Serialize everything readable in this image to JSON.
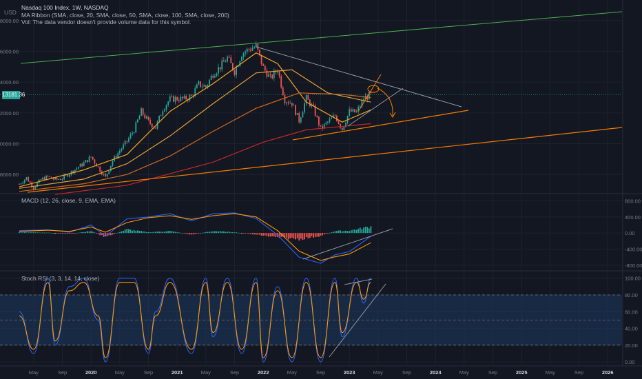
{
  "header": {
    "title": "Nasdaq 100 Index, 1W, NASDAQ",
    "ma_ribbon": "MA Ribbon (SMA, close, 20, SMA, close, 50, SMA, close, 100, SMA, close, 200)",
    "vol_note": "Vol: The data vendor doesn't provide volume data for this symbol.",
    "currency": "USD",
    "last_price": "13181.36"
  },
  "macd": {
    "label": "MACD (12, 26, close, 9, EMA, EMA)"
  },
  "stoch": {
    "label": "Stoch RSI (3, 3, 14, 14, close)"
  },
  "colors": {
    "bull": "#26a69a",
    "bear": "#ef5350",
    "ma20": "#f5a623",
    "ma50": "#e8a035",
    "ma100": "#d2691e",
    "ma200": "#c62828",
    "macd_line": "#2962ff",
    "signal_line": "#ff9800",
    "trend_green": "#4caf50",
    "trend_orange": "#f57c00",
    "stoch_band": "#1e3a5f"
  },
  "chart_data": [
    {
      "type": "line",
      "name": "price",
      "title": "Nasdaq 100 Index, 1W, NASDAQ",
      "ylabel": "USD",
      "ylim": [
        6800,
        19200
      ],
      "y_ticks": [
        8000,
        10000,
        12000,
        14000,
        16000,
        18000
      ],
      "y_tick_labels": [
        "8000.00",
        "10000.00",
        "12000.00",
        "14000.00",
        "16000.00",
        "18000.00"
      ],
      "x_ticks": [
        "May",
        "Sep",
        "2020",
        "May",
        "Sep",
        "2021",
        "May",
        "Sep",
        "2022",
        "May",
        "Sep",
        "2023",
        "May",
        "Sep",
        "2024",
        "May",
        "Sep",
        "2025",
        "May",
        "Sep",
        "2026"
      ],
      "x_bold": [
        "2020",
        "2021",
        "2022",
        "2023",
        "2024",
        "2025",
        "2026"
      ],
      "x_start": "2019-03",
      "x_end": "2026-02",
      "last_price": 13181.36,
      "close_monthly": [
        [
          "2019-03",
          7380
        ],
        [
          "2019-04",
          7780
        ],
        [
          "2019-05",
          7130
        ],
        [
          "2019-06",
          7670
        ],
        [
          "2019-07",
          7850
        ],
        [
          "2019-08",
          7660
        ],
        [
          "2019-09",
          7750
        ],
        [
          "2019-10",
          8080
        ],
        [
          "2019-11",
          8410
        ],
        [
          "2019-12",
          8730
        ],
        [
          "2020-01",
          9150
        ],
        [
          "2020-02",
          8460
        ],
        [
          "2020-03",
          7810
        ],
        [
          "2020-04",
          8890
        ],
        [
          "2020-05",
          9550
        ],
        [
          "2020-06",
          10150
        ],
        [
          "2020-07",
          10900
        ],
        [
          "2020-08",
          12100
        ],
        [
          "2020-09",
          11420
        ],
        [
          "2020-10",
          11050
        ],
        [
          "2020-11",
          12260
        ],
        [
          "2020-12",
          12890
        ],
        [
          "2021-01",
          12930
        ],
        [
          "2021-02",
          12900
        ],
        [
          "2021-03",
          13090
        ],
        [
          "2021-04",
          13860
        ],
        [
          "2021-05",
          13690
        ],
        [
          "2021-06",
          14550
        ],
        [
          "2021-07",
          15000
        ],
        [
          "2021-08",
          15580
        ],
        [
          "2021-09",
          14690
        ],
        [
          "2021-10",
          15850
        ],
        [
          "2021-11",
          16140
        ],
        [
          "2021-12",
          16320
        ],
        [
          "2022-01",
          14930
        ],
        [
          "2022-02",
          14240
        ],
        [
          "2022-03",
          14840
        ],
        [
          "2022-04",
          12850
        ],
        [
          "2022-05",
          12640
        ],
        [
          "2022-06",
          11500
        ],
        [
          "2022-07",
          12950
        ],
        [
          "2022-08",
          12270
        ],
        [
          "2022-09",
          10970
        ],
        [
          "2022-10",
          11400
        ],
        [
          "2022-11",
          11830
        ],
        [
          "2022-12",
          10940
        ],
        [
          "2023-01",
          12100
        ],
        [
          "2023-02",
          12040
        ],
        [
          "2023-03",
          12940
        ],
        [
          "2023-04",
          13181
        ]
      ],
      "ma_series": [
        {
          "key": "ma20",
          "points": [
            [
              "2019-03",
              7200
            ],
            [
              "2019-12",
              8300
            ],
            [
              "2020-06",
              9300
            ],
            [
              "2020-12",
              12100
            ],
            [
              "2021-06",
              13900
            ],
            [
              "2021-12",
              15900
            ],
            [
              "2022-03",
              15200
            ],
            [
              "2022-07",
              12700
            ],
            [
              "2022-12",
              11400
            ],
            [
              "2023-04",
              12200
            ]
          ]
        },
        {
          "key": "ma50",
          "points": [
            [
              "2019-03",
              7100
            ],
            [
              "2019-12",
              7700
            ],
            [
              "2020-06",
              8700
            ],
            [
              "2020-12",
              10500
            ],
            [
              "2021-06",
              12600
            ],
            [
              "2021-12",
              14600
            ],
            [
              "2022-05",
              14800
            ],
            [
              "2022-10",
              13300
            ],
            [
              "2023-04",
              12700
            ]
          ]
        },
        {
          "key": "ma100",
          "points": [
            [
              "2019-03",
              6900
            ],
            [
              "2019-12",
              7400
            ],
            [
              "2020-06",
              8000
            ],
            [
              "2020-12",
              9200
            ],
            [
              "2021-06",
              10800
            ],
            [
              "2021-12",
              12300
            ],
            [
              "2022-06",
              13300
            ],
            [
              "2022-12",
              13200
            ],
            [
              "2023-04",
              13000
            ]
          ]
        },
        {
          "key": "ma200",
          "points": [
            [
              "2019-08",
              6700
            ],
            [
              "2020-06",
              7300
            ],
            [
              "2021-06",
              8800
            ],
            [
              "2022-01",
              10100
            ],
            [
              "2022-07",
              10900
            ],
            [
              "2023-04",
              11300
            ]
          ]
        }
      ]
    },
    {
      "type": "bar",
      "name": "macd",
      "title": "MACD (12, 26, close, 9, EMA, EMA)",
      "ylim": [
        -920,
        960
      ],
      "y_ticks": [
        -800,
        -400,
        0,
        400,
        800
      ],
      "y_tick_labels": [
        "-800.00",
        "-400.00",
        "0.00",
        "400.00",
        "800.00"
      ],
      "macd_line": [
        [
          "2019-03",
          60
        ],
        [
          "2019-07",
          80
        ],
        [
          "2019-10",
          20
        ],
        [
          "2020-01",
          200
        ],
        [
          "2020-03",
          -80
        ],
        [
          "2020-06",
          350
        ],
        [
          "2020-09",
          400
        ],
        [
          "2020-12",
          480
        ],
        [
          "2021-03",
          300
        ],
        [
          "2021-06",
          480
        ],
        [
          "2021-09",
          500
        ],
        [
          "2021-12",
          360
        ],
        [
          "2022-03",
          -50
        ],
        [
          "2022-06",
          -600
        ],
        [
          "2022-09",
          -750
        ],
        [
          "2022-11",
          -540
        ],
        [
          "2023-01",
          -460
        ],
        [
          "2023-04",
          -80
        ]
      ],
      "signal_line": [
        [
          "2019-03",
          40
        ],
        [
          "2019-07",
          70
        ],
        [
          "2019-10",
          40
        ],
        [
          "2020-01",
          150
        ],
        [
          "2020-03",
          20
        ],
        [
          "2020-06",
          260
        ],
        [
          "2020-09",
          380
        ],
        [
          "2020-12",
          430
        ],
        [
          "2021-03",
          340
        ],
        [
          "2021-06",
          430
        ],
        [
          "2021-09",
          480
        ],
        [
          "2021-12",
          400
        ],
        [
          "2022-03",
          60
        ],
        [
          "2022-06",
          -450
        ],
        [
          "2022-09",
          -680
        ],
        [
          "2022-11",
          -590
        ],
        [
          "2023-01",
          -520
        ],
        [
          "2023-04",
          -240
        ]
      ],
      "histogram": [
        [
          "2019-03",
          20
        ],
        [
          "2019-07",
          10
        ],
        [
          "2019-10",
          -20
        ],
        [
          "2020-01",
          50
        ],
        [
          "2020-03",
          -100
        ],
        [
          "2020-06",
          90
        ],
        [
          "2020-09",
          20
        ],
        [
          "2020-12",
          50
        ],
        [
          "2021-03",
          -40
        ],
        [
          "2021-06",
          50
        ],
        [
          "2021-09",
          20
        ],
        [
          "2021-12",
          -40
        ],
        [
          "2022-03",
          -110
        ],
        [
          "2022-06",
          -150
        ],
        [
          "2022-09",
          -70
        ],
        [
          "2022-11",
          50
        ],
        [
          "2023-01",
          60
        ],
        [
          "2023-04",
          160
        ]
      ]
    },
    {
      "type": "line",
      "name": "stoch_rsi",
      "title": "Stoch RSI (3, 3, 14, 14, close)",
      "ylim": [
        -4,
        108
      ],
      "y_ticks": [
        0,
        20,
        40,
        60,
        80,
        100
      ],
      "y_tick_labels": [
        "0.00",
        "20.00",
        "40.00",
        "60.00",
        "80.00",
        "100.00"
      ],
      "band": [
        20,
        80
      ],
      "k": [
        [
          "2019-03",
          60
        ],
        [
          "2019-05",
          10
        ],
        [
          "2019-07",
          100
        ],
        [
          "2019-08",
          20
        ],
        [
          "2019-10",
          90
        ],
        [
          "2019-12",
          100
        ],
        [
          "2020-02",
          50
        ],
        [
          "2020-03",
          0
        ],
        [
          "2020-05",
          100
        ],
        [
          "2020-07",
          100
        ],
        [
          "2020-09",
          10
        ],
        [
          "2020-10",
          60
        ],
        [
          "2020-12",
          100
        ],
        [
          "2021-03",
          10
        ],
        [
          "2021-05",
          100
        ],
        [
          "2021-06",
          30
        ],
        [
          "2021-08",
          100
        ],
        [
          "2021-10",
          10
        ],
        [
          "2021-12",
          100
        ],
        [
          "2022-01",
          0
        ],
        [
          "2022-03",
          90
        ],
        [
          "2022-05",
          0
        ],
        [
          "2022-07",
          100
        ],
        [
          "2022-09",
          0
        ],
        [
          "2022-11",
          100
        ],
        [
          "2022-12",
          30
        ],
        [
          "2023-02",
          100
        ],
        [
          "2023-03",
          70
        ],
        [
          "2023-04",
          100
        ]
      ],
      "d": [
        [
          "2019-03",
          55
        ],
        [
          "2019-05",
          15
        ],
        [
          "2019-07",
          95
        ],
        [
          "2019-08",
          25
        ],
        [
          "2019-10",
          85
        ],
        [
          "2019-12",
          95
        ],
        [
          "2020-02",
          55
        ],
        [
          "2020-03",
          5
        ],
        [
          "2020-05",
          95
        ],
        [
          "2020-07",
          95
        ],
        [
          "2020-09",
          15
        ],
        [
          "2020-10",
          55
        ],
        [
          "2020-12",
          95
        ],
        [
          "2021-03",
          15
        ],
        [
          "2021-05",
          95
        ],
        [
          "2021-06",
          35
        ],
        [
          "2021-08",
          95
        ],
        [
          "2021-10",
          15
        ],
        [
          "2021-12",
          95
        ],
        [
          "2022-01",
          5
        ],
        [
          "2022-03",
          85
        ],
        [
          "2022-05",
          5
        ],
        [
          "2022-07",
          95
        ],
        [
          "2022-09",
          5
        ],
        [
          "2022-11",
          95
        ],
        [
          "2022-12",
          35
        ],
        [
          "2023-02",
          95
        ],
        [
          "2023-03",
          75
        ],
        [
          "2023-04",
          95
        ]
      ]
    }
  ]
}
